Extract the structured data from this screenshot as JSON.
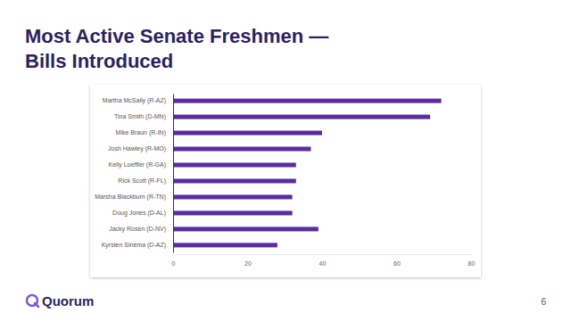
{
  "chart_data": {
    "type": "bar",
    "orientation": "horizontal",
    "title": [
      "Most Active Senate Freshmen —",
      "Bills Introduced"
    ],
    "categories": [
      "Martha McSally (R-AZ)",
      "Tina Smith (D-MN)",
      "Mike Braun (R-IN)",
      "Josh Hawley (R-MO)",
      "Kelly Loeffler (R-GA)",
      "Rick Scott (R-FL)",
      "Marsha Blackburn (R-TN)",
      "Doug Jones (D-AL)",
      "Jacky Rosen (D-NV)",
      "Kyrsten Sinema (D-AZ)"
    ],
    "values": [
      72,
      69,
      40,
      37,
      33,
      33,
      32,
      32,
      39,
      28
    ],
    "color": "#5a2ca0",
    "xlim": [
      0,
      80
    ],
    "xticks": [
      0,
      20,
      40,
      60,
      80
    ],
    "grid": false
  },
  "brand": "Quorum",
  "page_number": 6
}
